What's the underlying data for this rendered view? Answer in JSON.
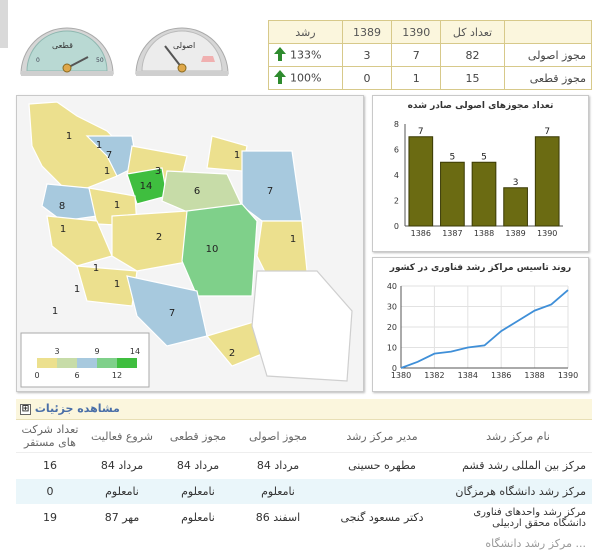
{
  "gauges": [
    {
      "label": "قطعی",
      "value_pct": 100,
      "face": "#b9d9d3",
      "rim": "#d7d7d7"
    },
    {
      "label": "اصولی",
      "value_pct": 133,
      "face": "#e2e2e2",
      "rim": "#d0d0d0"
    }
  ],
  "summary": {
    "headers": [
      "",
      "تعداد کل",
      "1390",
      "1389",
      "رشد"
    ],
    "rows": [
      {
        "label": "مجوز اصولی",
        "total": "82",
        "y1390": "7",
        "y1389": "3",
        "growth": "133%"
      },
      {
        "label": "مجوز قطعی",
        "total": "15",
        "y1390": "1",
        "y1389": "0",
        "growth": "100%"
      }
    ]
  },
  "map": {
    "region_labels": [
      "1",
      "1",
      "7",
      "1",
      "3",
      "1",
      "14",
      "6",
      "7",
      "8",
      "1",
      "1",
      "2",
      "10",
      "1",
      "1",
      "1",
      "7",
      "2",
      "1",
      "1"
    ],
    "legend_ticks_top": [
      "3",
      "9",
      "14"
    ],
    "legend_ticks_bottom": [
      "0",
      "6",
      "12"
    ],
    "legend_colors": [
      "#ece08e",
      "#c7dca8",
      "#a7c9de",
      "#7fd08a",
      "#3fbe3f"
    ]
  },
  "chart_data": [
    {
      "type": "bar",
      "title": "تعداد مجوزهای اصولی صادر شده",
      "categories": [
        "1386",
        "1387",
        "1388",
        "1389",
        "1390"
      ],
      "values": [
        7,
        5,
        5,
        3,
        7
      ],
      "ylim": [
        0,
        8
      ],
      "yticks": [
        "0",
        "2",
        "4",
        "6",
        "8"
      ],
      "bar_color": "#6b6b12"
    },
    {
      "type": "line",
      "title": "روند تاسیس مراکز رشد فناوری در کشور",
      "x": [
        1380,
        1381,
        1382,
        1383,
        1384,
        1385,
        1386,
        1387,
        1388,
        1389,
        1390
      ],
      "y": [
        0,
        3,
        7,
        8,
        10,
        11,
        18,
        23,
        28,
        31,
        38
      ],
      "xticks": [
        "1380",
        "1382",
        "1384",
        "1386",
        "1388",
        "1390"
      ],
      "yticks": [
        "0",
        "10",
        "20",
        "30",
        "40"
      ],
      "ylim": [
        0,
        40
      ],
      "line_color": "#3f8fd8"
    }
  ],
  "details": {
    "title": "مشاهده جزئیات",
    "toggle": "⊞",
    "headers": [
      "نام مرکز رشد",
      "مدیر مرکز رشد",
      "مجوز اصولی",
      "مجوز قطعی",
      "شروع فعالیت",
      "تعداد شرکت های مستقر"
    ],
    "rows": [
      [
        "مرکز بین المللی رشد قشم",
        "مطهره حسینی",
        "مرداد 84",
        "مرداد 84",
        "مرداد 84",
        "16"
      ],
      [
        "مرکز رشد دانشگاه هرمزگان",
        "",
        "نامعلوم",
        "نامعلوم",
        "نامعلوم",
        "0"
      ],
      [
        "مرکز رشد واحدهای فناوری دانشگاه محقق اردبیلی",
        "دکتر مسعود گنجی",
        "اسفند 86",
        "نامعلوم",
        "مهر 87",
        "19"
      ]
    ],
    "partial_row": "مرکز رشد دانشگاه ...",
    "accent": "#4a6fa8"
  }
}
